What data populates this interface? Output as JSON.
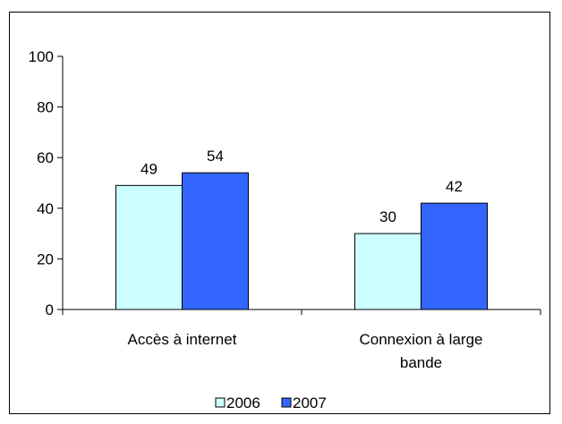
{
  "chart_data": {
    "type": "bar",
    "title": "",
    "xlabel": "",
    "ylabel": "",
    "categories": [
      [
        "Accès à internet"
      ],
      [
        "Connexion à large",
        "bande"
      ]
    ],
    "series": [
      {
        "name": "2006",
        "values": [
          49,
          30
        ],
        "color": "#ccffff"
      },
      {
        "name": "2007",
        "values": [
          54,
          42
        ],
        "color": "#3366ff"
      }
    ],
    "ylim": [
      0,
      100
    ],
    "yticks": [
      0,
      20,
      40,
      60,
      80,
      100
    ],
    "grid": false,
    "legend": "bottom",
    "data_labels": true
  }
}
